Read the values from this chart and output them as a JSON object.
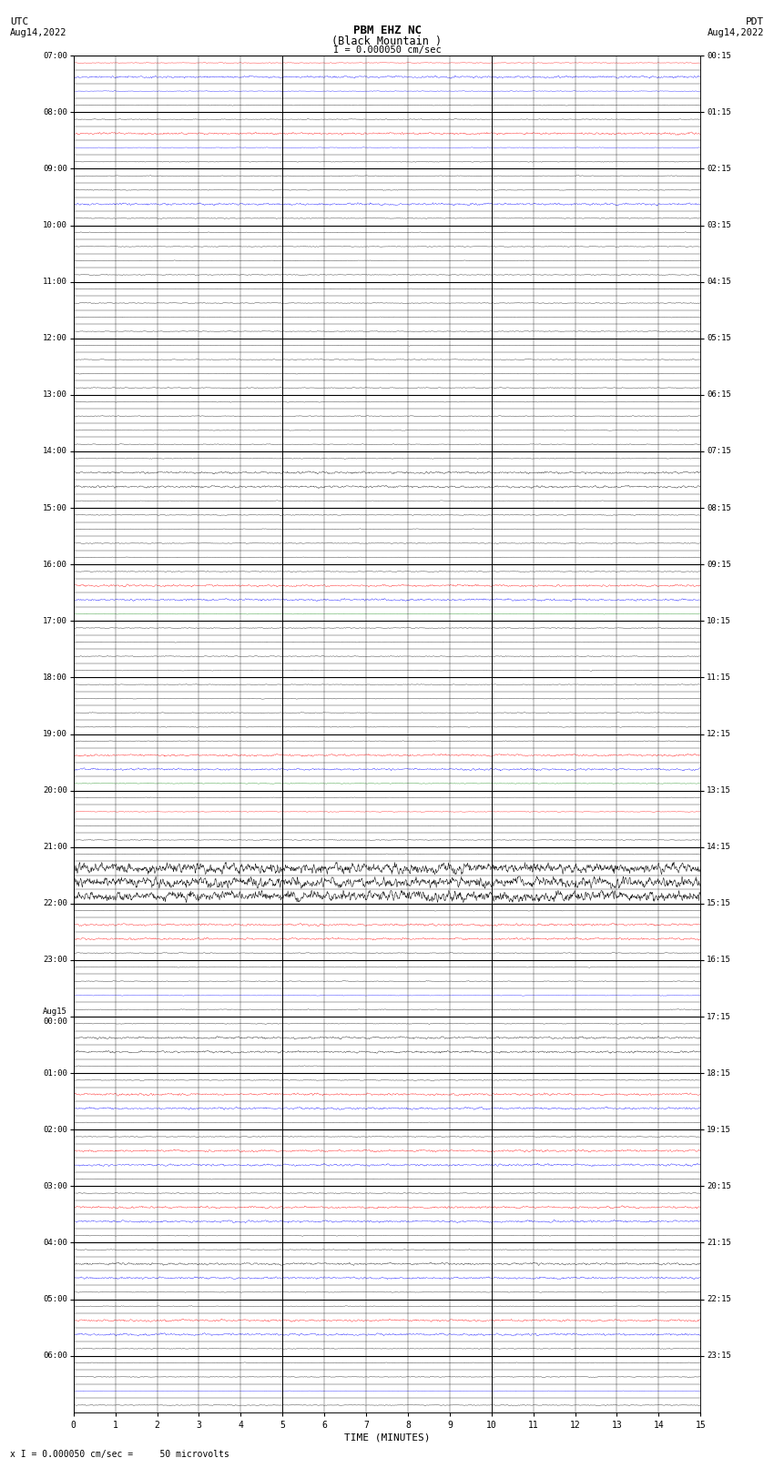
{
  "title_line1": "PBM EHZ NC",
  "title_line2": "(Black Mountain )",
  "scale_text": "I = 0.000050 cm/sec",
  "utc_label": "UTC",
  "utc_date": "Aug14,2022",
  "pdt_label": "PDT",
  "pdt_date": "Aug14,2022",
  "bottom_note": "x I = 0.000050 cm/sec =     50 microvolts",
  "xlabel": "TIME (MINUTES)",
  "left_labels": [
    "07:00",
    "08:00",
    "09:00",
    "10:00",
    "11:00",
    "12:00",
    "13:00",
    "14:00",
    "15:00",
    "16:00",
    "17:00",
    "18:00",
    "19:00",
    "20:00",
    "21:00",
    "22:00",
    "23:00",
    "Aug15\n00:00",
    "01:00",
    "02:00",
    "03:00",
    "04:00",
    "05:00",
    "06:00"
  ],
  "right_labels": [
    "00:15",
    "01:15",
    "02:15",
    "03:15",
    "04:15",
    "05:15",
    "06:15",
    "07:15",
    "08:15",
    "09:15",
    "10:15",
    "11:15",
    "12:15",
    "13:15",
    "14:15",
    "15:15",
    "16:15",
    "17:15",
    "18:15",
    "19:15",
    "20:15",
    "21:15",
    "22:15",
    "23:15"
  ],
  "n_rows": 96,
  "n_hours": 24,
  "rows_per_hour": 4,
  "x_ticks": [
    0,
    1,
    2,
    3,
    4,
    5,
    6,
    7,
    8,
    9,
    10,
    11,
    12,
    13,
    14,
    15
  ],
  "background_color": "#ffffff",
  "line_color_black": "#000000",
  "line_color_red": "#ff0000",
  "line_color_blue": "#0000ff",
  "line_color_green": "#008000",
  "grid_color": "#000000",
  "seed": 42,
  "row_colors_spec": {
    "comment": "row index (0-based from top): color. Black=0, Red=1, Blue=2, Green=3",
    "rows": [
      1,
      2,
      2,
      0,
      0,
      1,
      2,
      0,
      0,
      0,
      2,
      0,
      0,
      0,
      0,
      0,
      0,
      0,
      0,
      0,
      0,
      0,
      0,
      0,
      0,
      0,
      0,
      0,
      0,
      0,
      0,
      0,
      0,
      0,
      0,
      0,
      0,
      1,
      2,
      3,
      0,
      0,
      0,
      0,
      0,
      0,
      0,
      0,
      0,
      1,
      2,
      3,
      0,
      1,
      0,
      0,
      0,
      0,
      0,
      0,
      0,
      1,
      1,
      0,
      0,
      0,
      2,
      0,
      0,
      0,
      0,
      0,
      0,
      1,
      2,
      0,
      0,
      1,
      2,
      0,
      0,
      1,
      2,
      0,
      0,
      0,
      2,
      0,
      0,
      1,
      2,
      0,
      0,
      0,
      2,
      0
    ]
  },
  "row_amplitudes": {
    "comment": "amplitude multiplier per row index",
    "high_rows": [
      57,
      58,
      59
    ],
    "med_rows": [
      1,
      5,
      10,
      29,
      30,
      37,
      38,
      49,
      50,
      61,
      62,
      69,
      70,
      73,
      74,
      77,
      78,
      81,
      82,
      85,
      86,
      89,
      90
    ],
    "low_rows": []
  }
}
